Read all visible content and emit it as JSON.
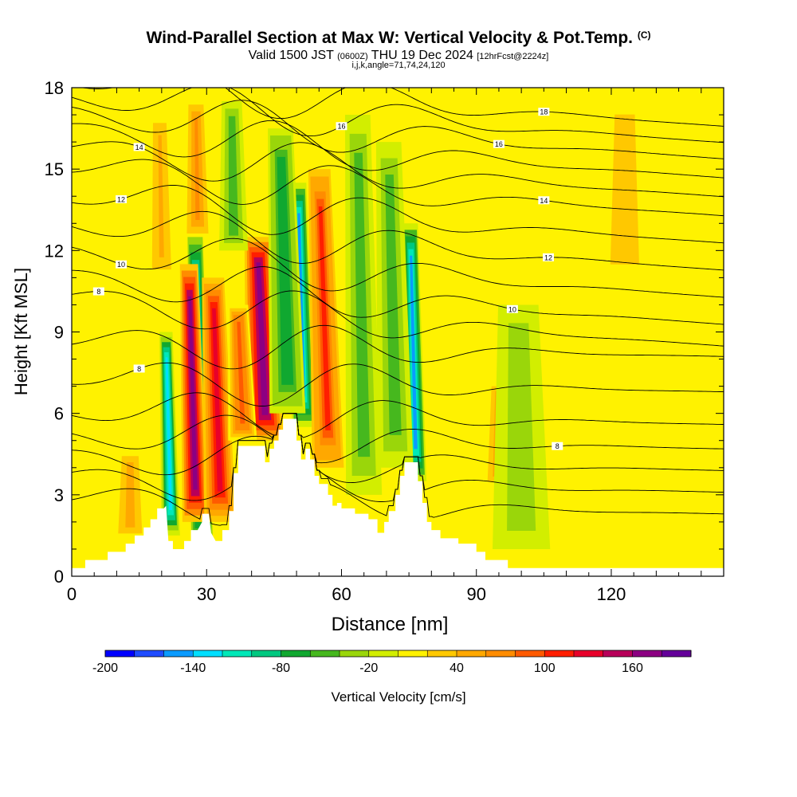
{
  "title": {
    "main": "Wind-Parallel Section at Max W: Vertical Velocity & Pot.Temp.",
    "copyright": "(C)",
    "valid_prefix": "Valid 1500 JST",
    "valid_utc": "(0600Z)",
    "valid_date": "THU 19 Dec 2024",
    "forecast": "[12hrFcst@2224z]",
    "indices": "i,j,k,angle=71,74,24,120"
  },
  "chart_data": {
    "type": "heatmap",
    "xlabel": "Distance [nm]",
    "ylabel": "Height [Kft MSL]",
    "xlim": [
      0,
      145
    ],
    "ylim": [
      0,
      18
    ],
    "xticks": [
      0,
      30,
      60,
      90,
      120
    ],
    "yticks": [
      0,
      3,
      6,
      9,
      12,
      15,
      18
    ],
    "colorbar": {
      "label": "Vertical Velocity [cm/s]",
      "range": [
        -200,
        200
      ],
      "tick_values": [
        -200,
        -140,
        -80,
        -20,
        40,
        100,
        160
      ],
      "tick_labels": [
        "-200",
        "-140",
        "-80",
        "-20",
        "40",
        "100",
        "160"
      ],
      "colors": [
        "#0000ff",
        "#1f4cff",
        "#0a9bff",
        "#00dfff",
        "#00e8b8",
        "#00c880",
        "#10a830",
        "#46b81e",
        "#9ad60a",
        "#d2ee00",
        "#fff200",
        "#ffc800",
        "#ffa800",
        "#ff8c00",
        "#ff5a00",
        "#ff1e00",
        "#e8002a",
        "#b8005a",
        "#8c0082",
        "#64009a"
      ]
    },
    "background_velocity": 5,
    "velocity_features": [
      {
        "x": 29,
        "y_top": 12.5,
        "y_bot": 1.2,
        "lean": -0.55,
        "w": 1.5,
        "v": -150
      },
      {
        "x": 22,
        "y_top": 9.0,
        "y_bot": 1.5,
        "lean": -0.55,
        "w": 1.3,
        "v": -130
      },
      {
        "x": 27.5,
        "y_top": 11.5,
        "y_bot": 2.0,
        "lean": -0.6,
        "w": 1.8,
        "v": 170
      },
      {
        "x": 33,
        "y_top": 11.0,
        "y_bot": 2.0,
        "lean": -0.7,
        "w": 2.2,
        "v": 120
      },
      {
        "x": 43,
        "y_top": 12.5,
        "y_bot": 5.0,
        "lean": -0.9,
        "w": 2.6,
        "v": 175
      },
      {
        "x": 38,
        "y_top": 10.0,
        "y_bot": 5.0,
        "lean": -0.8,
        "w": 2.0,
        "v": 90
      },
      {
        "x": 51.5,
        "y_top": 14.5,
        "y_bot": 5.5,
        "lean": -0.5,
        "w": 1.6,
        "v": -145
      },
      {
        "x": 48,
        "y_top": 16.5,
        "y_bot": 6.0,
        "lean": -0.6,
        "w": 2.5,
        "v": -75
      },
      {
        "x": 57,
        "y_top": 15.0,
        "y_bot": 4.0,
        "lean": -0.7,
        "w": 2.2,
        "v": 110
      },
      {
        "x": 65,
        "y_top": 17.0,
        "y_bot": 3.0,
        "lean": -0.4,
        "w": 2.5,
        "v": -60
      },
      {
        "x": 76.5,
        "y_top": 13.0,
        "y_bot": 3.5,
        "lean": -0.5,
        "w": 1.5,
        "v": -145
      },
      {
        "x": 72,
        "y_top": 16.0,
        "y_bot": 4.0,
        "lean": -0.5,
        "w": 2.5,
        "v": -55
      },
      {
        "x": 96,
        "y_top": 7.0,
        "y_bot": 3.5,
        "lean": -0.2,
        "w": 2.2,
        "v": 95
      },
      {
        "x": 100,
        "y_top": 10.0,
        "y_bot": 1.0,
        "lean": -0.3,
        "w": 4.0,
        "v": -35
      },
      {
        "x": 36,
        "y_top": 17.5,
        "y_bot": 12.0,
        "lean": -0.3,
        "w": 2.0,
        "v": -50
      },
      {
        "x": 28,
        "y_top": 17.5,
        "y_bot": 12.5,
        "lean": -0.3,
        "w": 1.8,
        "v": 60
      },
      {
        "x": 20,
        "y_top": 17.0,
        "y_bot": 11.0,
        "lean": -0.3,
        "w": 2.0,
        "v": 45
      },
      {
        "x": 13,
        "y_top": 4.5,
        "y_bot": 1.5,
        "lean": 0.0,
        "w": 2.0,
        "v": 55
      },
      {
        "x": 123,
        "y_top": 17.5,
        "y_bot": 11.0,
        "lean": 0.0,
        "w": 4.0,
        "v": 30
      }
    ],
    "terrain_kft": [
      [
        0,
        0.3
      ],
      [
        3,
        0.3
      ],
      [
        3,
        0.6
      ],
      [
        8,
        0.6
      ],
      [
        8,
        0.9
      ],
      [
        12,
        0.9
      ],
      [
        12,
        1.2
      ],
      [
        14,
        1.2
      ],
      [
        14,
        1.5
      ],
      [
        16,
        1.5
      ],
      [
        16,
        1.8
      ],
      [
        17.5,
        1.8
      ],
      [
        17.5,
        2.1
      ],
      [
        19,
        2.1
      ],
      [
        19,
        2.5
      ],
      [
        20.5,
        2.5
      ],
      [
        21,
        2.6
      ],
      [
        21.5,
        1.3
      ],
      [
        22.5,
        1.3
      ],
      [
        22.5,
        1.0
      ],
      [
        25,
        1.0
      ],
      [
        25,
        1.3
      ],
      [
        26.5,
        1.3
      ],
      [
        26.5,
        1.7
      ],
      [
        28,
        1.7
      ],
      [
        29,
        2.0
      ],
      [
        29,
        2.3
      ],
      [
        30.5,
        2.3
      ],
      [
        31,
        1.6
      ],
      [
        32,
        1.3
      ],
      [
        33.5,
        1.3
      ],
      [
        33.5,
        1.7
      ],
      [
        35,
        1.7
      ],
      [
        35,
        2.4
      ],
      [
        36,
        2.4
      ],
      [
        36,
        3.8
      ],
      [
        37,
        3.8
      ],
      [
        37,
        4.8
      ],
      [
        43,
        4.8
      ],
      [
        43,
        4.2
      ],
      [
        44,
        4.2
      ],
      [
        44,
        4.7
      ],
      [
        45,
        4.7
      ],
      [
        45,
        5.0
      ],
      [
        46,
        5.0
      ],
      [
        46,
        5.4
      ],
      [
        47,
        5.4
      ],
      [
        47,
        5.8
      ],
      [
        50,
        5.8
      ],
      [
        50,
        5.0
      ],
      [
        51,
        5.0
      ],
      [
        51,
        4.3
      ],
      [
        52,
        4.3
      ],
      [
        52,
        4.7
      ],
      [
        53,
        4.7
      ],
      [
        53,
        4.3
      ],
      [
        54,
        4.3
      ],
      [
        54,
        3.7
      ],
      [
        55,
        3.7
      ],
      [
        55,
        3.4
      ],
      [
        57,
        3.4
      ],
      [
        57,
        3.0
      ],
      [
        58,
        3.0
      ],
      [
        58,
        2.6
      ],
      [
        59,
        2.6
      ],
      [
        59,
        2.7
      ],
      [
        60,
        2.7
      ],
      [
        60,
        2.5
      ],
      [
        63,
        2.5
      ],
      [
        63,
        2.3
      ],
      [
        66,
        2.3
      ],
      [
        66,
        2.1
      ],
      [
        68,
        2.1
      ],
      [
        68,
        1.6
      ],
      [
        69.5,
        1.6
      ],
      [
        69.5,
        2.0
      ],
      [
        70.5,
        2.0
      ],
      [
        70.5,
        2.4
      ],
      [
        72,
        2.4
      ],
      [
        72,
        3.0
      ],
      [
        73,
        3.0
      ],
      [
        73,
        3.7
      ],
      [
        74,
        3.7
      ],
      [
        74,
        4.2
      ],
      [
        77,
        4.2
      ],
      [
        77,
        3.5
      ],
      [
        78,
        3.5
      ],
      [
        78,
        2.7
      ],
      [
        79,
        2.7
      ],
      [
        79,
        2.0
      ],
      [
        80,
        2.0
      ],
      [
        80,
        1.7
      ],
      [
        82,
        1.7
      ],
      [
        82,
        1.4
      ],
      [
        86,
        1.4
      ],
      [
        86,
        1.2
      ],
      [
        90,
        1.2
      ],
      [
        90,
        0.9
      ],
      [
        92,
        0.9
      ],
      [
        92,
        0.6
      ],
      [
        97,
        0.6
      ],
      [
        97,
        0.3
      ],
      [
        145,
        0.3
      ],
      [
        145,
        0
      ],
      [
        0,
        0
      ]
    ],
    "theta_contours": [
      {
        "base": 2.6,
        "label": null,
        "label_x": null
      },
      {
        "base": 3.4,
        "label": null,
        "label_x": null
      },
      {
        "base": 4.2,
        "label": null,
        "label_x": null
      },
      {
        "base": 5.0,
        "label": "8",
        "label_x": 108
      },
      {
        "base": 5.9,
        "label": null,
        "label_x": null
      },
      {
        "base": 7.1,
        "label": "8",
        "label_x": 15
      },
      {
        "base": 8.4,
        "label": null,
        "label_x": null
      },
      {
        "base": 9.5,
        "label": "8",
        "label_x": 6
      },
      {
        "base": 10.3,
        "label": "10",
        "label_x": 98
      },
      {
        "base": 11.3,
        "label": "10",
        "label_x": 11
      },
      {
        "base": 12.3,
        "label": "12",
        "label_x": 106
      },
      {
        "base": 13.3,
        "label": "12",
        "label_x": 11
      },
      {
        "base": 14.3,
        "label": "14",
        "label_x": 105
      },
      {
        "base": 15.0,
        "label": "14",
        "label_x": 15
      },
      {
        "base": 15.7,
        "label": null,
        "label_x": null
      },
      {
        "base": 16.4,
        "label": "16",
        "label_x": 95
      },
      {
        "base": 17.0,
        "label": "16",
        "label_x": 60
      },
      {
        "base": 17.6,
        "label": "18",
        "label_x": 105
      }
    ]
  }
}
